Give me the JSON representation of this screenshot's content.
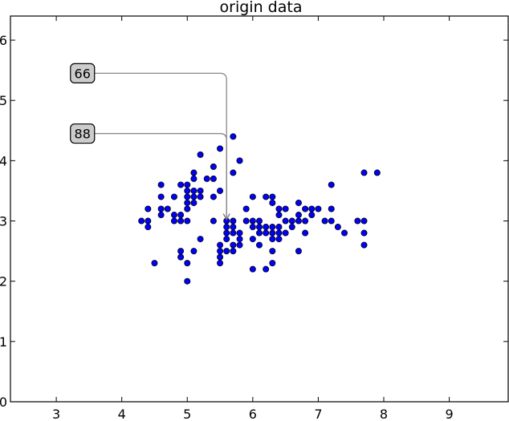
{
  "chart_data": {
    "type": "scatter",
    "title": "origin data",
    "xlabel": "",
    "ylabel": "",
    "xlim": [
      2.3,
      9.9
    ],
    "ylim": [
      0,
      6.4
    ],
    "xticks": [
      "3",
      "4",
      "5",
      "6",
      "7",
      "8",
      "9"
    ],
    "yticks": [
      "0",
      "1",
      "2",
      "3",
      "4",
      "5",
      "6"
    ],
    "grid": false,
    "marker_color": "#0000ff",
    "marker_edge": "#000000",
    "points": [
      [
        4.3,
        3.0
      ],
      [
        4.4,
        2.9
      ],
      [
        4.4,
        3.0
      ],
      [
        4.4,
        3.2
      ],
      [
        4.5,
        2.3
      ],
      [
        4.6,
        3.1
      ],
      [
        4.6,
        3.2
      ],
      [
        4.6,
        3.4
      ],
      [
        4.6,
        3.6
      ],
      [
        4.7,
        3.2
      ],
      [
        4.8,
        3.0
      ],
      [
        4.8,
        3.1
      ],
      [
        4.8,
        3.4
      ],
      [
        4.9,
        2.4
      ],
      [
        4.9,
        2.5
      ],
      [
        4.9,
        3.0
      ],
      [
        4.9,
        3.1
      ],
      [
        4.9,
        3.6
      ],
      [
        5.0,
        2.0
      ],
      [
        5.0,
        2.3
      ],
      [
        5.0,
        3.0
      ],
      [
        5.0,
        3.2
      ],
      [
        5.0,
        3.3
      ],
      [
        5.0,
        3.4
      ],
      [
        5.0,
        3.5
      ],
      [
        5.0,
        3.6
      ],
      [
        5.1,
        2.5
      ],
      [
        5.1,
        3.3
      ],
      [
        5.1,
        3.4
      ],
      [
        5.1,
        3.5
      ],
      [
        5.1,
        3.7
      ],
      [
        5.1,
        3.8
      ],
      [
        5.2,
        2.7
      ],
      [
        5.2,
        3.4
      ],
      [
        5.2,
        3.5
      ],
      [
        5.2,
        4.1
      ],
      [
        5.3,
        3.7
      ],
      [
        5.4,
        3.0
      ],
      [
        5.4,
        3.4
      ],
      [
        5.4,
        3.7
      ],
      [
        5.4,
        3.9
      ],
      [
        5.5,
        2.3
      ],
      [
        5.5,
        2.4
      ],
      [
        5.5,
        2.5
      ],
      [
        5.5,
        2.6
      ],
      [
        5.5,
        3.5
      ],
      [
        5.5,
        4.2
      ],
      [
        5.6,
        2.5
      ],
      [
        5.6,
        2.7
      ],
      [
        5.6,
        2.8
      ],
      [
        5.6,
        2.9
      ],
      [
        5.6,
        3.0
      ],
      [
        5.7,
        2.5
      ],
      [
        5.7,
        2.6
      ],
      [
        5.7,
        2.8
      ],
      [
        5.7,
        2.9
      ],
      [
        5.7,
        3.0
      ],
      [
        5.7,
        3.8
      ],
      [
        5.7,
        4.4
      ],
      [
        5.8,
        2.6
      ],
      [
        5.8,
        2.7
      ],
      [
        5.8,
        2.8
      ],
      [
        5.8,
        4.0
      ],
      [
        5.9,
        3.0
      ],
      [
        5.9,
        3.2
      ],
      [
        6.0,
        2.2
      ],
      [
        6.0,
        2.7
      ],
      [
        6.0,
        2.9
      ],
      [
        6.0,
        3.0
      ],
      [
        6.0,
        3.4
      ],
      [
        6.1,
        2.6
      ],
      [
        6.1,
        2.8
      ],
      [
        6.1,
        2.9
      ],
      [
        6.1,
        3.0
      ],
      [
        6.2,
        2.2
      ],
      [
        6.2,
        2.8
      ],
      [
        6.2,
        2.9
      ],
      [
        6.2,
        3.4
      ],
      [
        6.3,
        2.3
      ],
      [
        6.3,
        2.5
      ],
      [
        6.3,
        2.7
      ],
      [
        6.3,
        2.8
      ],
      [
        6.3,
        2.9
      ],
      [
        6.3,
        3.3
      ],
      [
        6.3,
        3.4
      ],
      [
        6.4,
        2.7
      ],
      [
        6.4,
        2.8
      ],
      [
        6.4,
        2.9
      ],
      [
        6.4,
        3.1
      ],
      [
        6.4,
        3.2
      ],
      [
        6.5,
        2.8
      ],
      [
        6.5,
        3.0
      ],
      [
        6.5,
        3.2
      ],
      [
        6.6,
        2.9
      ],
      [
        6.6,
        3.0
      ],
      [
        6.7,
        2.5
      ],
      [
        6.7,
        3.0
      ],
      [
        6.7,
        3.1
      ],
      [
        6.7,
        3.3
      ],
      [
        6.8,
        2.8
      ],
      [
        6.8,
        3.0
      ],
      [
        6.8,
        3.2
      ],
      [
        6.9,
        3.1
      ],
      [
        6.9,
        3.2
      ],
      [
        7.0,
        3.2
      ],
      [
        7.1,
        3.0
      ],
      [
        7.2,
        3.0
      ],
      [
        7.2,
        3.2
      ],
      [
        7.2,
        3.6
      ],
      [
        7.3,
        2.9
      ],
      [
        7.4,
        2.8
      ],
      [
        7.6,
        3.0
      ],
      [
        7.7,
        2.6
      ],
      [
        7.7,
        2.8
      ],
      [
        7.7,
        3.0
      ],
      [
        7.7,
        3.8
      ],
      [
        7.9,
        3.8
      ]
    ],
    "annotations": [
      {
        "text": "66",
        "target": [
          5.6,
          3.0
        ],
        "text_pos": [
          3.4,
          5.45
        ]
      },
      {
        "text": "88",
        "target": [
          5.6,
          3.0
        ],
        "text_pos": [
          3.4,
          4.45
        ]
      }
    ]
  }
}
